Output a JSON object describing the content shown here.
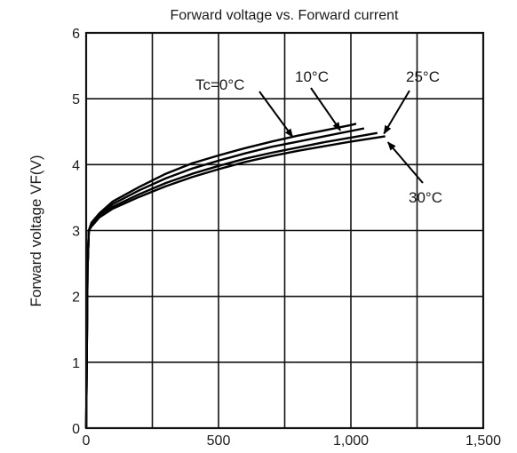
{
  "chart_data": {
    "type": "line",
    "title": "Forward voltage vs. Forward current",
    "xlabel": "",
    "ylabel": "Forward voltage VF(V)",
    "xlim": [
      0,
      1500
    ],
    "ylim": [
      0,
      6
    ],
    "x_ticks": [
      0,
      500,
      1000,
      1500
    ],
    "x_tick_labels": [
      "0",
      "500",
      "1,000",
      "1,500"
    ],
    "y_ticks": [
      0,
      1,
      2,
      3,
      4,
      5,
      6
    ],
    "y_tick_labels": [
      "0",
      "1",
      "2",
      "3",
      "4",
      "5",
      "6"
    ],
    "grid": true,
    "series": [
      {
        "name": "Tc=0°C",
        "x": [
          0,
          5,
          10,
          20,
          50,
          100,
          200,
          300,
          400,
          500,
          600,
          700,
          800,
          900,
          1000,
          1020
        ],
        "y": [
          0,
          2.4,
          3.0,
          3.12,
          3.26,
          3.44,
          3.66,
          3.86,
          4.02,
          4.14,
          4.25,
          4.35,
          4.44,
          4.52,
          4.6,
          4.62
        ]
      },
      {
        "name": "10°C",
        "x": [
          0,
          5,
          10,
          20,
          50,
          100,
          200,
          300,
          400,
          500,
          600,
          700,
          800,
          900,
          1000,
          1050
        ],
        "y": [
          0,
          2.4,
          3.0,
          3.1,
          3.24,
          3.4,
          3.61,
          3.79,
          3.94,
          4.06,
          4.17,
          4.27,
          4.35,
          4.43,
          4.51,
          4.55
        ]
      },
      {
        "name": "25°C",
        "x": [
          0,
          5,
          10,
          20,
          50,
          100,
          200,
          300,
          400,
          500,
          600,
          700,
          800,
          900,
          1000,
          1100
        ],
        "y": [
          0,
          2.4,
          3.0,
          3.08,
          3.22,
          3.36,
          3.55,
          3.72,
          3.86,
          3.98,
          4.09,
          4.18,
          4.26,
          4.34,
          4.41,
          4.48
        ]
      },
      {
        "name": "30°C",
        "x": [
          0,
          5,
          10,
          20,
          50,
          100,
          200,
          300,
          400,
          500,
          600,
          700,
          800,
          900,
          1000,
          1130
        ],
        "y": [
          0,
          2.4,
          3.0,
          3.06,
          3.2,
          3.33,
          3.51,
          3.67,
          3.81,
          3.93,
          4.04,
          4.13,
          4.21,
          4.28,
          4.35,
          4.43
        ]
      }
    ],
    "annotations": [
      {
        "text": "Tc=0°C",
        "series": 0,
        "x": 780,
        "y": 4.42
      },
      {
        "text": "10°C",
        "series": 1,
        "x": 960,
        "y": 4.52
      },
      {
        "text": "25°C",
        "series": 2,
        "x": 1125,
        "y": 4.47
      },
      {
        "text": "30°C",
        "series": 3,
        "x": 1140,
        "y": 4.34
      }
    ]
  }
}
